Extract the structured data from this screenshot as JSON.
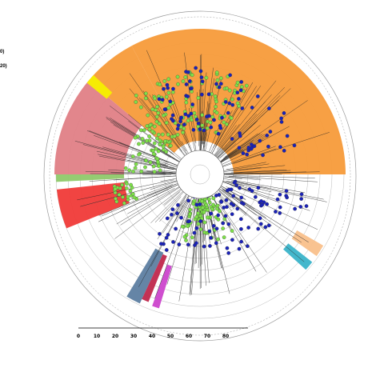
{
  "legend_fragments": [
    "0)",
    "20)"
  ],
  "scale_bar": {
    "tick_labels": [
      "0",
      "10",
      "20",
      "30",
      "40",
      "50",
      "60",
      "70",
      "80"
    ]
  },
  "clade_colors": {
    "orange": "#f79b3a",
    "pink": "#e07f86",
    "yellow": "#f6f000",
    "green": "#8fc96a",
    "red": "#f03a38",
    "slate_blue": "#5d7ea1",
    "crimson": "#c0274c",
    "magenta": "#cc44cc",
    "light_orange": "#f9c08b",
    "teal": "#3ab3c9"
  },
  "leaf_colors": {
    "green_leaf": "#7ee04a",
    "blue_leaf": "#1a22b8"
  }
}
